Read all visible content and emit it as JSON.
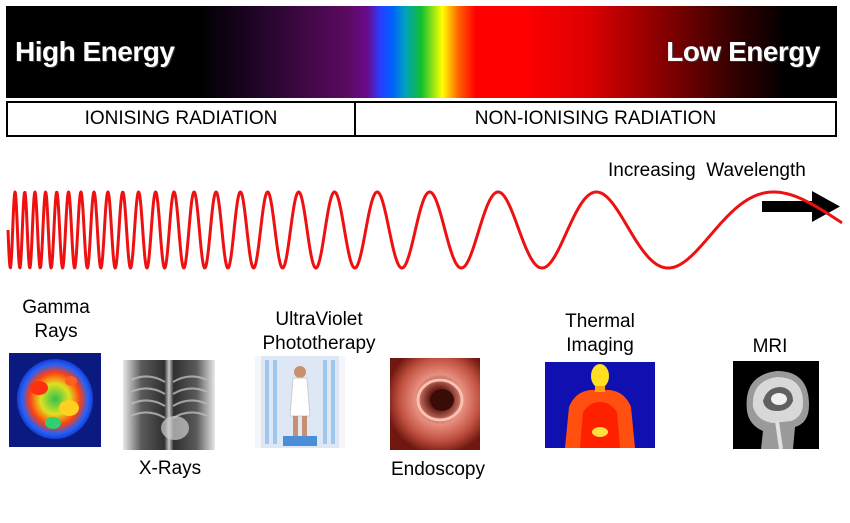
{
  "spectrum": {
    "high_label": "High Energy",
    "low_label": "Low Energy"
  },
  "radiation": {
    "ionising": "IONISING RADIATION",
    "non_ionising": "NON-IONISING RADIATION"
  },
  "wavelength": {
    "label": "Increasing  Wavelength",
    "wave_color": "#ee1111"
  },
  "applications": {
    "gamma": "Gamma\nRays",
    "xrays": "X-Rays",
    "uv": "UltraViolet\nPhototherapy",
    "endoscopy": "Endoscopy",
    "thermal": "Thermal\nImaging",
    "mri": "MRI"
  },
  "icons": [
    "gamma-pet-scan-image",
    "chest-xray-image",
    "uv-phototherapy-image",
    "endoscopy-image",
    "thermal-imaging-image",
    "mri-scan-image",
    "arrow-right-icon"
  ]
}
